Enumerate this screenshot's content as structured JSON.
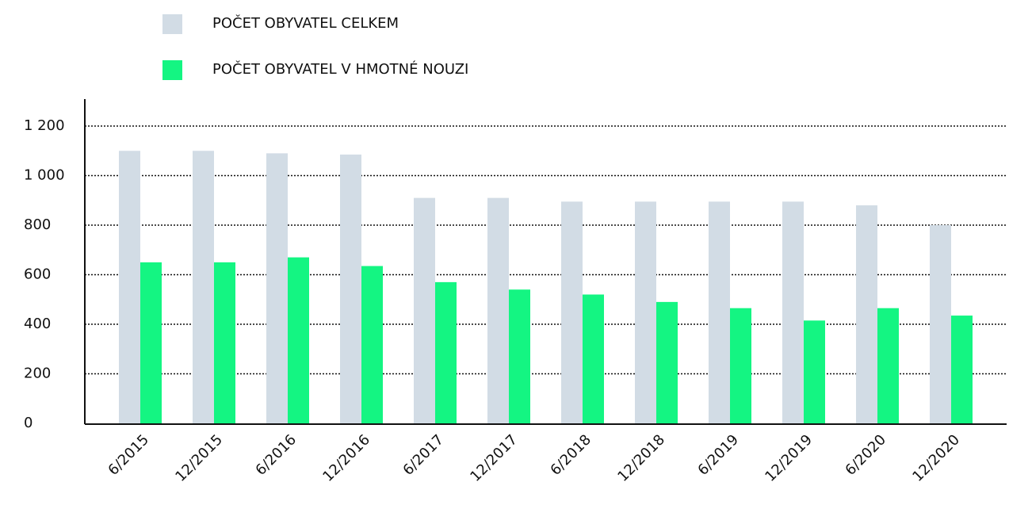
{
  "chart_data": {
    "type": "bar",
    "categories": [
      "6/2015",
      "12/2015",
      "6/2016",
      "12/2016",
      "6/2017",
      "12/2017",
      "6/2018",
      "12/2018",
      "6/2019",
      "12/2019",
      "6/2020",
      "12/2020"
    ],
    "series": [
      {
        "name": "POČET OBYVATEL CELKEM",
        "color": "#d2dce5",
        "values": [
          1100,
          1100,
          1090,
          1085,
          910,
          910,
          895,
          895,
          895,
          895,
          880,
          800
        ]
      },
      {
        "name": "POČET OBYVATEL V HMOTNÉ NOUZI",
        "color": "#14f582",
        "values": [
          650,
          650,
          670,
          635,
          570,
          540,
          520,
          490,
          465,
          415,
          465,
          435
        ]
      }
    ],
    "ylim": [
      0,
      1200
    ],
    "yticks": [
      0,
      200,
      400,
      600,
      800,
      {
        "value": 1000,
        "label": "1 000"
      },
      {
        "value": 1200,
        "label": "1 200"
      }
    ],
    "grid": true
  }
}
